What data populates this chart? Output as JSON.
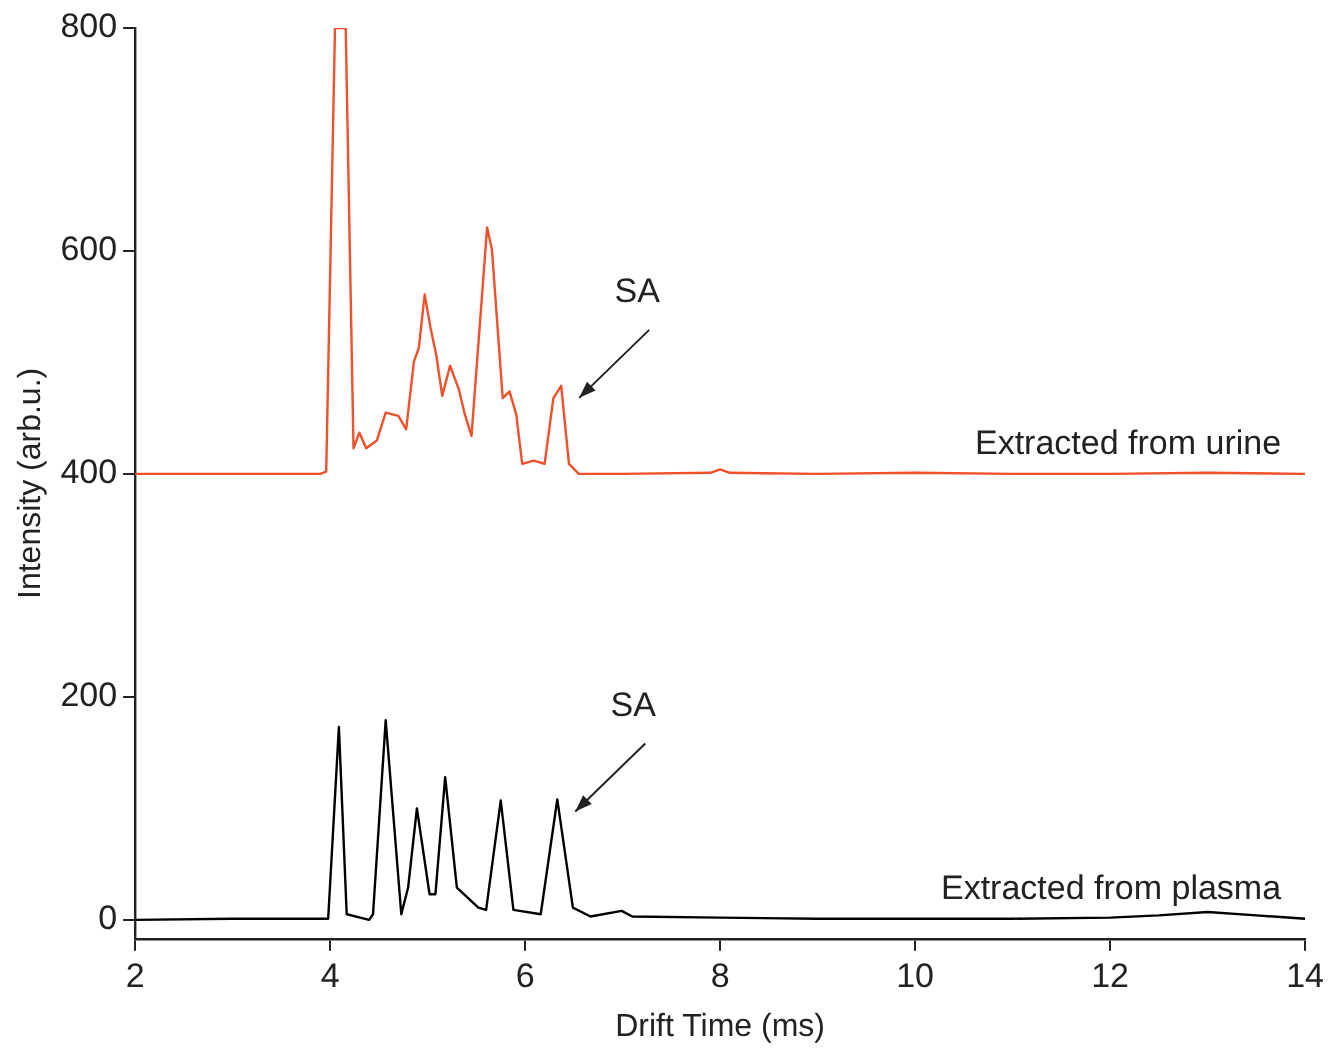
{
  "chart_data": {
    "type": "line",
    "xlabel": "Drift Time (ms)",
    "ylabel": "Intensity (arb.u.)",
    "xlim": [
      2,
      14
    ],
    "xticks": [
      2,
      4,
      6,
      8,
      10,
      12,
      14
    ],
    "ylim": [
      -17,
      800
    ],
    "yticks": [
      0,
      200,
      400,
      600,
      800
    ],
    "grid": false,
    "legend": false,
    "marker": "none",
    "line_style": "solid",
    "series": [
      {
        "name": "Extracted from urine",
        "color": "#f0502a",
        "x": [
          2,
          3,
          3.9,
          3.96,
          4.05,
          4.16,
          4.24,
          4.3,
          4.37,
          4.48,
          4.57,
          4.7,
          4.78,
          4.86,
          4.91,
          4.97,
          5.03,
          5.09,
          5.15,
          5.23,
          5.32,
          5.38,
          5.45,
          5.61,
          5.66,
          5.77,
          5.84,
          5.91,
          5.97,
          6.09,
          6.2,
          6.29,
          6.37,
          6.45,
          6.55,
          7,
          7.9,
          8,
          8.1,
          9,
          10,
          11,
          12,
          13,
          14
        ],
        "values": [
          400,
          400,
          400,
          402,
          800,
          800,
          423,
          437,
          423,
          430,
          455,
          452,
          440,
          501,
          513,
          561,
          531,
          506,
          470,
          497,
          476,
          454,
          434,
          621,
          601,
          468,
          474,
          453,
          409,
          412,
          409,
          468,
          479,
          409,
          400,
          400,
          401,
          404,
          401,
          400,
          401,
          400,
          400,
          401,
          400
        ]
      },
      {
        "name": "Extracted from plasma",
        "color": "#000000",
        "x": [
          2,
          3,
          3.98,
          4.09,
          4.17,
          4.4,
          4.44,
          4.57,
          4.73,
          4.8,
          4.89,
          5.02,
          5.08,
          5.18,
          5.3,
          5.52,
          5.6,
          5.75,
          5.88,
          6.16,
          6.33,
          6.49,
          6.67,
          6.99,
          7.1,
          8,
          9,
          10,
          11,
          12,
          12.5,
          13,
          13.5,
          14
        ],
        "values": [
          0,
          1,
          1,
          173,
          5,
          0,
          5,
          179,
          5,
          29,
          100,
          23,
          23,
          128,
          29,
          11,
          9,
          107,
          9,
          5,
          108,
          11,
          3,
          8,
          3,
          2,
          1,
          1,
          1,
          2,
          4,
          7,
          4,
          1
        ]
      }
    ],
    "annotations": [
      {
        "text": "SA",
        "x": 6.37,
        "y": 479
      },
      {
        "text": "SA",
        "x": 6.33,
        "y": 108
      }
    ]
  }
}
